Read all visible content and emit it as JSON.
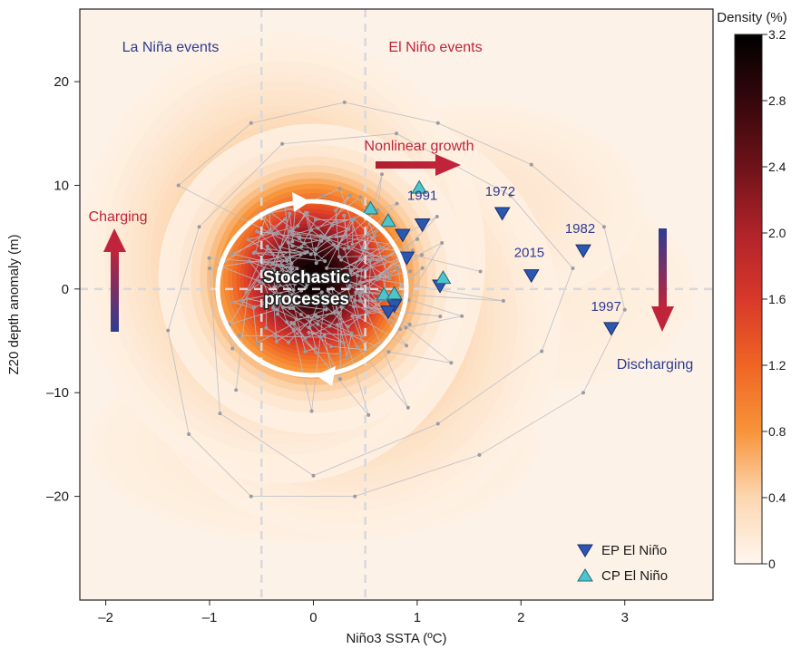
{
  "chart_data": {
    "type": "scatter",
    "xlabel": "Niño3 SSTA (ºC)",
    "ylabel": "Z20 depth anomaly (m)",
    "xlim": [
      -2.25,
      3.85
    ],
    "ylim": [
      -30,
      27
    ],
    "xticks": [
      "–2",
      "–1",
      "0",
      "1",
      "2",
      "3"
    ],
    "xtick_values": [
      -2,
      -1,
      0,
      1,
      2,
      3
    ],
    "yticks": [
      "–20",
      "–10",
      "0",
      "10",
      "20"
    ],
    "ytick_values": [
      -20,
      -10,
      0,
      10,
      20
    ],
    "reference_lines": {
      "vertical": [
        -0.5,
        0.5
      ],
      "horizontal": [
        0
      ]
    },
    "background_color": "#fdf2e8",
    "colorbar": {
      "title": "Density (%)",
      "min": 0,
      "max": 3.2,
      "tick_labels": [
        "0",
        "0.4",
        "0.8",
        "1.2",
        "1.6",
        "2.0",
        "2.4",
        "2.8",
        "3.2"
      ],
      "tick_values": [
        0,
        0.4,
        0.8,
        1.2,
        1.6,
        2.0,
        2.4,
        2.8,
        3.2
      ],
      "stops": [
        {
          "v": 0.0,
          "color": "#fff6ee"
        },
        {
          "v": 0.4,
          "color": "#fcd7b2"
        },
        {
          "v": 0.8,
          "color": "#f7943a"
        },
        {
          "v": 1.2,
          "color": "#ef6524"
        },
        {
          "v": 1.6,
          "color": "#d8382a"
        },
        {
          "v": 2.0,
          "color": "#b0232a"
        },
        {
          "v": 2.4,
          "color": "#6e1219"
        },
        {
          "v": 2.8,
          "color": "#35070b"
        },
        {
          "v": 3.2,
          "color": "#000000"
        }
      ]
    },
    "density_peaks": [
      {
        "x": 0.0,
        "y": 1.0,
        "sx": 0.55,
        "sy": 5.5,
        "amp": 3.2
      },
      {
        "x": -0.3,
        "y": 3.0,
        "sx": 0.9,
        "sy": 10.0,
        "amp": 0.85
      },
      {
        "x": 0.3,
        "y": -3.0,
        "sx": 1.0,
        "sy": 10.0,
        "amp": 0.7
      },
      {
        "x": 1.6,
        "y": 8.0,
        "sx": 1.1,
        "sy": 7.0,
        "amp": 0.22
      },
      {
        "x": 2.3,
        "y": 0.0,
        "sx": 1.3,
        "sy": 9.0,
        "amp": 0.14
      },
      {
        "x": 0.0,
        "y": -15.0,
        "sx": 1.6,
        "sy": 7.0,
        "amp": 0.2
      }
    ],
    "series": [
      {
        "name": "EP El Niño",
        "marker": "triangle-down",
        "color": "#2a57b2",
        "points": [
          {
            "x": 0.86,
            "y": 5.2
          },
          {
            "x": 0.9,
            "y": 3.0
          },
          {
            "x": 1.05,
            "y": 6.2
          },
          {
            "x": 0.78,
            "y": -1.6
          },
          {
            "x": 0.72,
            "y": -2.2
          },
          {
            "x": 1.22,
            "y": 0.3
          },
          {
            "x": 1.82,
            "y": 7.3
          },
          {
            "x": 2.1,
            "y": 1.3
          },
          {
            "x": 2.6,
            "y": 3.7
          },
          {
            "x": 2.87,
            "y": -3.8
          }
        ]
      },
      {
        "name": "CP El Niño",
        "marker": "triangle-up",
        "color": "#4fc4cc",
        "points": [
          {
            "x": 0.55,
            "y": 7.8
          },
          {
            "x": 0.72,
            "y": 6.6
          },
          {
            "x": 1.02,
            "y": 9.8
          },
          {
            "x": 0.68,
            "y": -0.5
          },
          {
            "x": 0.78,
            "y": -0.4
          },
          {
            "x": 1.25,
            "y": 1.1
          }
        ]
      }
    ],
    "year_labels": [
      {
        "text": "1991",
        "x": 1.05,
        "y": 8.6
      },
      {
        "text": "1972",
        "x": 1.8,
        "y": 9.0
      },
      {
        "text": "1982",
        "x": 2.57,
        "y": 5.4
      },
      {
        "text": "2015",
        "x": 2.08,
        "y": 3.1
      },
      {
        "text": "1997",
        "x": 2.82,
        "y": -2.1
      }
    ],
    "annotations": {
      "la_nina": {
        "text": "La Niña events",
        "color": "#2e3c91"
      },
      "el_nino": {
        "text": "El Niño events",
        "color": "#c0243a"
      },
      "nonlinear": {
        "text": "Nonlinear growth",
        "color": "#c0243a"
      },
      "charging": {
        "text": "Charging",
        "color": "#c0243a"
      },
      "discharging": {
        "text": "Discharging",
        "color": "#2e3c91"
      },
      "stochastic_line1": "Stochastic",
      "stochastic_line2": "processes"
    },
    "legend": {
      "position": "bottom-right",
      "entries": [
        {
          "label": "EP El Niño",
          "marker": "triangle-down",
          "color": "#2a57b2"
        },
        {
          "label": "CP El Niño",
          "marker": "triangle-up",
          "color": "#4fc4cc"
        }
      ]
    },
    "grid": false
  }
}
